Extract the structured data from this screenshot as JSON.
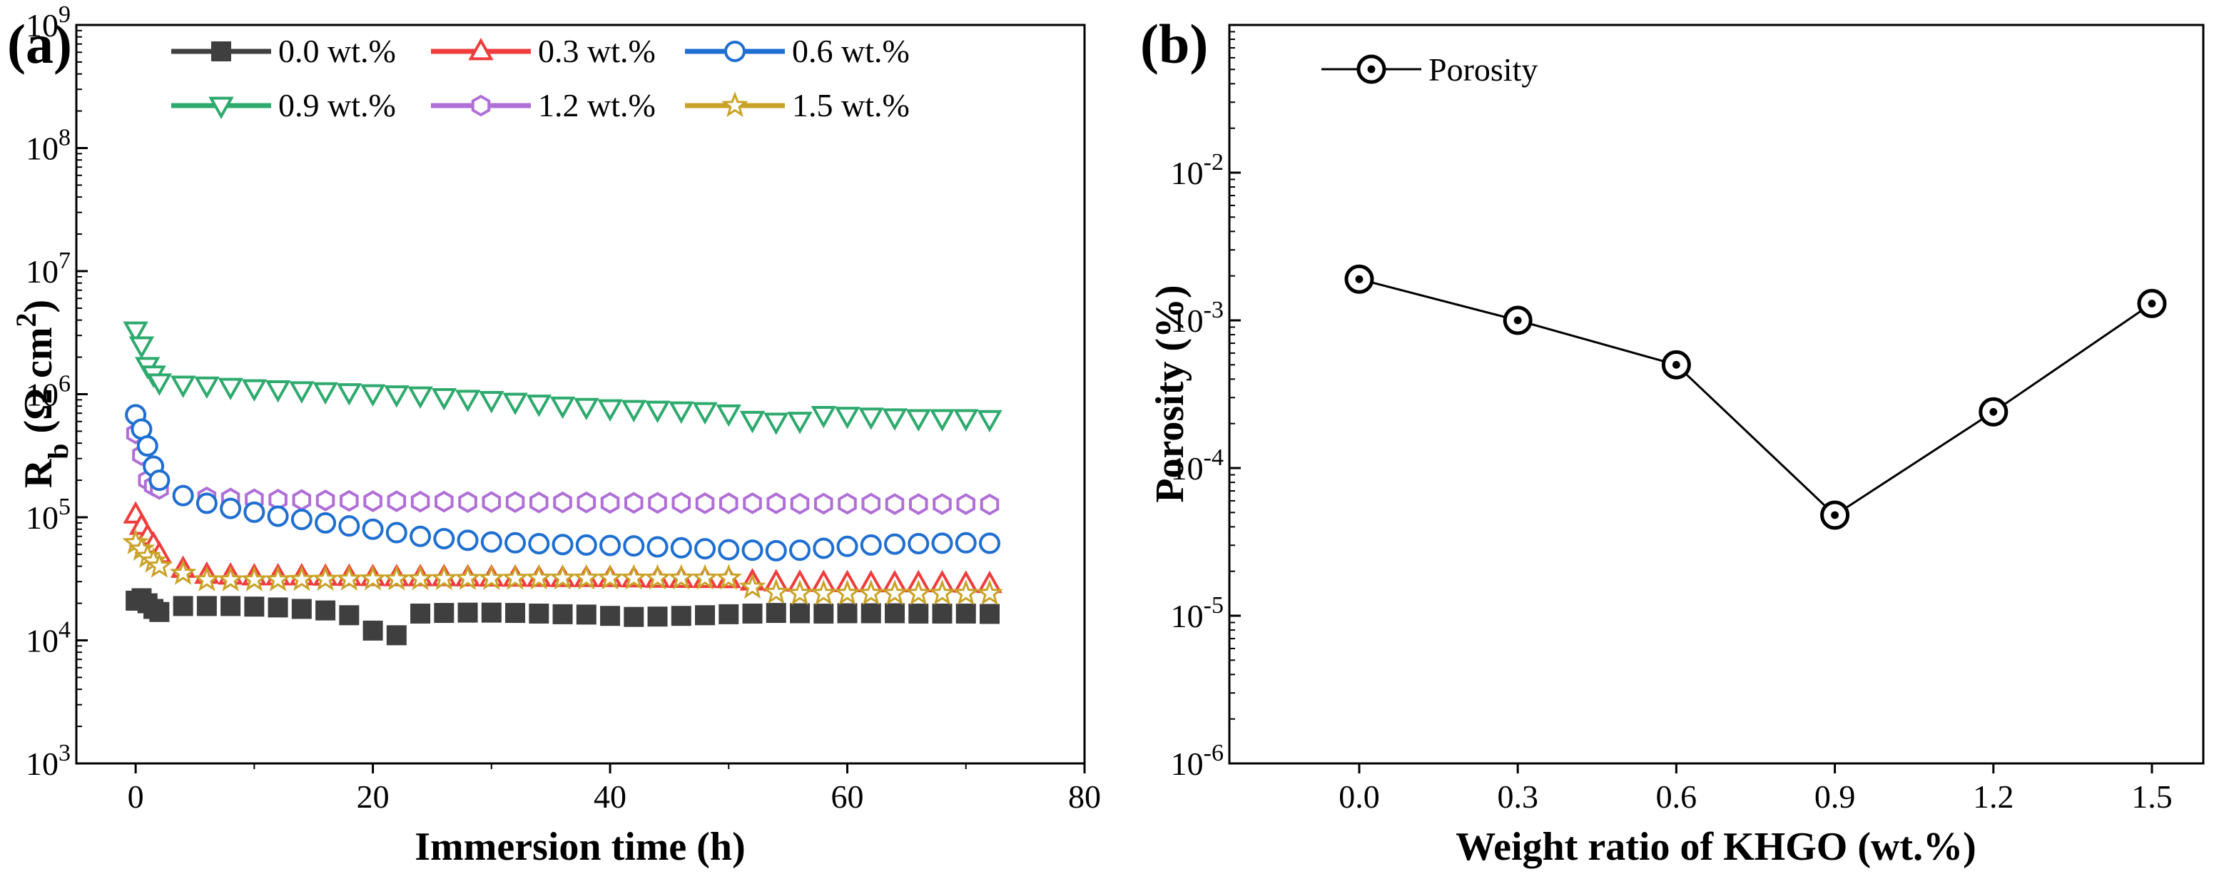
{
  "chart_data": [
    {
      "panel": "(a)",
      "type": "scatter",
      "xlabel": "Immersion time (h)",
      "ylabel": "R_b (Ω cm²)",
      "ylabel_parts": {
        "main": "R",
        "sub": "b",
        "unit_open": " (Ω cm",
        "sup": "2",
        "unit_close": ")"
      },
      "xlim": [
        -5,
        80
      ],
      "ylim": [
        1000,
        1000000000
      ],
      "yscale": "log",
      "xticks": [
        0,
        20,
        40,
        60,
        80
      ],
      "xtick_labels": [
        "0",
        "20",
        "40",
        "60",
        "80"
      ],
      "yticks": [
        1000,
        10000,
        100000,
        1000000,
        10000000,
        100000000,
        1000000000
      ],
      "ytick_exponents": [
        "3",
        "4",
        "5",
        "6",
        "7",
        "8",
        "9"
      ],
      "ytick_base": "10",
      "legend_position": "top",
      "series": [
        {
          "name": "0.0 wt.%",
          "marker": "square",
          "color": "#3f3f3f",
          "x": [
            0,
            0.5,
            1,
            1.5,
            2,
            4,
            6,
            8,
            10,
            12,
            14,
            16,
            18,
            20,
            22,
            24,
            26,
            28,
            30,
            32,
            34,
            36,
            38,
            40,
            42,
            44,
            46,
            48,
            50,
            52,
            54,
            56,
            58,
            60,
            62,
            64,
            66,
            68,
            70,
            72
          ],
          "y": [
            21000,
            22000,
            20000,
            18000,
            17000,
            19000,
            19000,
            19000,
            18800,
            18500,
            18000,
            17500,
            16000,
            12000,
            11000,
            16500,
            16700,
            16800,
            16800,
            16700,
            16500,
            16300,
            16200,
            15800,
            15500,
            15600,
            15800,
            16000,
            16300,
            16500,
            16700,
            16600,
            16500,
            16600,
            16600,
            16600,
            16500,
            16500,
            16500,
            16400
          ]
        },
        {
          "name": "0.3 wt.%",
          "marker": "triangle-up",
          "color": "#f03c3c",
          "x": [
            0,
            0.5,
            1,
            1.5,
            2,
            4,
            6,
            8,
            10,
            12,
            14,
            16,
            18,
            20,
            22,
            24,
            26,
            28,
            30,
            32,
            34,
            36,
            38,
            40,
            42,
            44,
            46,
            48,
            50,
            52,
            54,
            56,
            58,
            60,
            62,
            64,
            66,
            68,
            70,
            72
          ],
          "y": [
            105000,
            85000,
            70000,
            60000,
            50000,
            38000,
            34000,
            33500,
            33000,
            33000,
            33000,
            32800,
            32700,
            32600,
            32500,
            32500,
            32500,
            32400,
            32300,
            32200,
            32100,
            32000,
            32000,
            32000,
            31800,
            31600,
            31500,
            31400,
            31300,
            30000,
            29500,
            29300,
            29200,
            29100,
            29000,
            29000,
            29000,
            29000,
            28800,
            28600
          ]
        },
        {
          "name": "0.6 wt.%",
          "marker": "circle",
          "color": "#1f6fd1",
          "x": [
            0,
            0.5,
            1,
            1.5,
            2,
            4,
            6,
            8,
            10,
            12,
            14,
            16,
            18,
            20,
            22,
            24,
            26,
            28,
            30,
            32,
            34,
            36,
            38,
            40,
            42,
            44,
            46,
            48,
            50,
            52,
            54,
            56,
            58,
            60,
            62,
            64,
            66,
            68,
            70,
            72
          ],
          "y": [
            680000,
            520000,
            380000,
            260000,
            200000,
            150000,
            130000,
            118000,
            110000,
            102000,
            96000,
            90000,
            85000,
            80000,
            75000,
            70000,
            67000,
            65000,
            63000,
            62000,
            61000,
            60000,
            59500,
            59000,
            58500,
            57500,
            56500,
            55500,
            54500,
            54000,
            53500,
            54000,
            56000,
            58000,
            59500,
            60500,
            61000,
            61500,
            62000,
            61500
          ]
        },
        {
          "name": "0.9 wt.%",
          "marker": "triangle-down",
          "color": "#2eaa6e",
          "x": [
            0,
            0.5,
            1,
            1.5,
            2,
            4,
            6,
            8,
            10,
            12,
            14,
            16,
            18,
            20,
            22,
            24,
            26,
            28,
            30,
            32,
            34,
            36,
            38,
            40,
            42,
            44,
            46,
            48,
            50,
            52,
            54,
            56,
            58,
            60,
            62,
            64,
            66,
            68,
            70,
            72
          ],
          "y": [
            3300000,
            2500000,
            1700000,
            1450000,
            1250000,
            1200000,
            1180000,
            1150000,
            1120000,
            1100000,
            1080000,
            1060000,
            1040000,
            1020000,
            1000000,
            980000,
            950000,
            920000,
            900000,
            870000,
            840000,
            810000,
            790000,
            770000,
            760000,
            750000,
            740000,
            730000,
            700000,
            620000,
            600000,
            610000,
            680000,
            670000,
            660000,
            650000,
            640000,
            640000,
            640000,
            630000
          ]
        },
        {
          "name": "1.2 wt.%",
          "marker": "hexagon",
          "color": "#b06fd6",
          "x": [
            0,
            0.5,
            1,
            1.5,
            2,
            4,
            6,
            8,
            10,
            12,
            14,
            16,
            18,
            20,
            22,
            24,
            26,
            28,
            30,
            32,
            34,
            36,
            38,
            40,
            42,
            44,
            46,
            48,
            50,
            52,
            54,
            56,
            58,
            60,
            62,
            64,
            66,
            68,
            70,
            72
          ],
          "y": [
            480000,
            320000,
            200000,
            180000,
            170000,
            150000,
            145000,
            142000,
            140000,
            139000,
            138000,
            137000,
            136000,
            135000,
            135000,
            134000,
            134000,
            133000,
            133000,
            133000,
            132000,
            132000,
            132000,
            131000,
            131000,
            131000,
            131000,
            130000,
            130000,
            130000,
            130000,
            129000,
            129000,
            129000,
            129000,
            128000,
            128000,
            128000,
            128000,
            127000
          ]
        },
        {
          "name": "1.5 wt.%",
          "marker": "star",
          "color": "#c9a227",
          "x": [
            0,
            0.5,
            1,
            1.5,
            2,
            4,
            6,
            8,
            10,
            12,
            14,
            16,
            18,
            20,
            22,
            24,
            26,
            28,
            30,
            32,
            34,
            36,
            38,
            40,
            42,
            44,
            46,
            48,
            50,
            52,
            54,
            56,
            58,
            60,
            62,
            64,
            66,
            68,
            70,
            72
          ],
          "y": [
            62000,
            55000,
            48000,
            44000,
            40000,
            35000,
            31000,
            31000,
            31000,
            31000,
            31200,
            31300,
            31400,
            31500,
            31500,
            31600,
            31700,
            31800,
            31800,
            31900,
            32000,
            32000,
            32000,
            32000,
            32000,
            32000,
            32000,
            32000,
            32000,
            27000,
            24500,
            24000,
            24000,
            24000,
            24000,
            24000,
            24000,
            24000,
            24000,
            24000
          ]
        }
      ]
    },
    {
      "panel": "(b)",
      "type": "line",
      "xlabel": "Weight ratio of KHGO (wt.%)",
      "ylabel": "Porosity (%)",
      "yscale": "log",
      "ylim": [
        1e-06,
        0.1
      ],
      "categories": [
        "0.0",
        "0.3",
        "0.6",
        "0.9",
        "1.2",
        "1.5"
      ],
      "yticks": [
        1e-06,
        1e-05,
        0.0001,
        0.001,
        0.01
      ],
      "ytick_exponents": [
        "-6",
        "-5",
        "-4",
        "-3",
        "-2"
      ],
      "ytick_base": "10",
      "legend_position": "top-left",
      "series": [
        {
          "name": "Porosity",
          "marker": "circle-dot",
          "color": "#000000",
          "values": [
            0.0019,
            0.001,
            0.0005,
            4.8e-05,
            0.00024,
            0.0013
          ]
        }
      ]
    }
  ]
}
